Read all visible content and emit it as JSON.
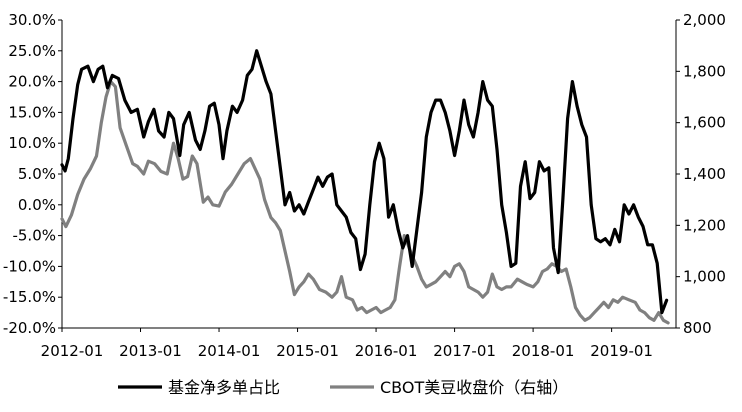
{
  "chart_data": {
    "type": "line",
    "x_ticks": [
      "2012-01",
      "2013-01",
      "2014-01",
      "2015-01",
      "2016-01",
      "2017-01",
      "2018-01",
      "2019-01"
    ],
    "left_axis": {
      "ticks": [
        "-20.0%",
        "-15.0%",
        "-10.0%",
        "-5.0%",
        "0.0%",
        "5.0%",
        "10.0%",
        "15.0%",
        "20.0%",
        "25.0%",
        "30.0%"
      ],
      "range": [
        -20,
        30
      ],
      "unit": "%"
    },
    "right_axis": {
      "ticks": [
        "800",
        "1,000",
        "1,200",
        "1,400",
        "1,600",
        "1,800",
        "2,000"
      ],
      "range": [
        800,
        2000
      ]
    },
    "grid": false,
    "legend_position": "bottom",
    "series": [
      {
        "name": "基金净多单占比",
        "axis": "left",
        "color": "#000000",
        "points": [
          [
            2012.0,
            6.5
          ],
          [
            2012.04,
            5.5
          ],
          [
            2012.08,
            7.5
          ],
          [
            2012.14,
            14.0
          ],
          [
            2012.2,
            19.5
          ],
          [
            2012.25,
            22.0
          ],
          [
            2012.33,
            22.5
          ],
          [
            2012.4,
            20.0
          ],
          [
            2012.46,
            22.0
          ],
          [
            2012.52,
            22.5
          ],
          [
            2012.58,
            19.0
          ],
          [
            2012.64,
            21.0
          ],
          [
            2012.72,
            20.5
          ],
          [
            2012.8,
            17.0
          ],
          [
            2012.88,
            15.0
          ],
          [
            2012.96,
            15.5
          ],
          [
            2013.04,
            11.0
          ],
          [
            2013.1,
            13.5
          ],
          [
            2013.17,
            15.5
          ],
          [
            2013.23,
            12.0
          ],
          [
            2013.3,
            11.0
          ],
          [
            2013.36,
            15.0
          ],
          [
            2013.42,
            14.0
          ],
          [
            2013.5,
            8.0
          ],
          [
            2013.55,
            13.0
          ],
          [
            2013.62,
            15.0
          ],
          [
            2013.7,
            10.5
          ],
          [
            2013.76,
            9.0
          ],
          [
            2013.82,
            12.0
          ],
          [
            2013.88,
            16.0
          ],
          [
            2013.94,
            16.5
          ],
          [
            2014.0,
            13.0
          ],
          [
            2014.05,
            7.5
          ],
          [
            2014.1,
            12.0
          ],
          [
            2014.17,
            16.0
          ],
          [
            2014.23,
            15.0
          ],
          [
            2014.3,
            17.0
          ],
          [
            2014.36,
            21.0
          ],
          [
            2014.42,
            22.0
          ],
          [
            2014.48,
            25.0
          ],
          [
            2014.54,
            22.5
          ],
          [
            2014.6,
            20.0
          ],
          [
            2014.66,
            18.0
          ],
          [
            2014.72,
            12.0
          ],
          [
            2014.78,
            6.0
          ],
          [
            2014.84,
            0.0
          ],
          [
            2014.9,
            2.0
          ],
          [
            2014.96,
            -1.0
          ],
          [
            2015.02,
            0.0
          ],
          [
            2015.08,
            -1.5
          ],
          [
            2015.14,
            0.5
          ],
          [
            2015.2,
            2.5
          ],
          [
            2015.26,
            4.5
          ],
          [
            2015.32,
            3.0
          ],
          [
            2015.38,
            4.5
          ],
          [
            2015.44,
            5.0
          ],
          [
            2015.5,
            0.0
          ],
          [
            2015.56,
            -1.0
          ],
          [
            2015.62,
            -2.0
          ],
          [
            2015.68,
            -4.5
          ],
          [
            2015.74,
            -5.5
          ],
          [
            2015.8,
            -10.5
          ],
          [
            2015.86,
            -8.0
          ],
          [
            2015.92,
            0.0
          ],
          [
            2015.98,
            7.0
          ],
          [
            2016.04,
            10.0
          ],
          [
            2016.1,
            7.5
          ],
          [
            2016.16,
            -2.0
          ],
          [
            2016.22,
            0.0
          ],
          [
            2016.28,
            -4.0
          ],
          [
            2016.34,
            -7.0
          ],
          [
            2016.4,
            -5.0
          ],
          [
            2016.46,
            -10.0
          ],
          [
            2016.52,
            -4.0
          ],
          [
            2016.58,
            2.0
          ],
          [
            2016.64,
            11.0
          ],
          [
            2016.7,
            15.0
          ],
          [
            2016.76,
            17.0
          ],
          [
            2016.82,
            17.0
          ],
          [
            2016.88,
            15.0
          ],
          [
            2016.94,
            12.0
          ],
          [
            2017.0,
            8.0
          ],
          [
            2017.06,
            12.0
          ],
          [
            2017.12,
            17.0
          ],
          [
            2017.18,
            13.0
          ],
          [
            2017.24,
            11.0
          ],
          [
            2017.3,
            15.0
          ],
          [
            2017.36,
            20.0
          ],
          [
            2017.42,
            17.0
          ],
          [
            2017.48,
            16.0
          ],
          [
            2017.54,
            9.0
          ],
          [
            2017.6,
            0.0
          ],
          [
            2017.66,
            -4.5
          ],
          [
            2017.72,
            -10.0
          ],
          [
            2017.78,
            -9.5
          ],
          [
            2017.84,
            3.0
          ],
          [
            2017.9,
            7.0
          ],
          [
            2017.96,
            1.0
          ],
          [
            2018.02,
            2.0
          ],
          [
            2018.08,
            7.0
          ],
          [
            2018.14,
            5.5
          ],
          [
            2018.2,
            6.0
          ],
          [
            2018.26,
            -7.0
          ],
          [
            2018.32,
            -11.0
          ],
          [
            2018.38,
            1.0
          ],
          [
            2018.44,
            14.0
          ],
          [
            2018.5,
            20.0
          ],
          [
            2018.56,
            16.0
          ],
          [
            2018.62,
            13.0
          ],
          [
            2018.68,
            11.0
          ],
          [
            2018.74,
            0.0
          ],
          [
            2018.8,
            -5.5
          ],
          [
            2018.86,
            -6.0
          ],
          [
            2018.92,
            -5.5
          ],
          [
            2018.98,
            -6.5
          ],
          [
            2019.04,
            -4.0
          ],
          [
            2019.1,
            -6.0
          ],
          [
            2019.16,
            0.0
          ],
          [
            2019.22,
            -1.5
          ],
          [
            2019.28,
            0.0
          ],
          [
            2019.34,
            -2.0
          ],
          [
            2019.4,
            -3.5
          ],
          [
            2019.46,
            -6.5
          ],
          [
            2019.52,
            -6.5
          ],
          [
            2019.58,
            -9.5
          ],
          [
            2019.64,
            -17.5
          ],
          [
            2019.7,
            -15.5
          ]
        ]
      },
      {
        "name": "CBOT美豆收盘价（右轴）",
        "axis": "right",
        "color": "#808080",
        "points": [
          [
            2012.0,
            1225
          ],
          [
            2012.05,
            1195
          ],
          [
            2012.12,
            1240
          ],
          [
            2012.2,
            1320
          ],
          [
            2012.28,
            1380
          ],
          [
            2012.36,
            1420
          ],
          [
            2012.44,
            1470
          ],
          [
            2012.5,
            1600
          ],
          [
            2012.56,
            1700
          ],
          [
            2012.62,
            1760
          ],
          [
            2012.68,
            1740
          ],
          [
            2012.74,
            1580
          ],
          [
            2012.82,
            1510
          ],
          [
            2012.9,
            1440
          ],
          [
            2012.96,
            1430
          ],
          [
            2013.04,
            1400
          ],
          [
            2013.1,
            1450
          ],
          [
            2013.18,
            1440
          ],
          [
            2013.26,
            1410
          ],
          [
            2013.34,
            1400
          ],
          [
            2013.42,
            1520
          ],
          [
            2013.48,
            1460
          ],
          [
            2013.54,
            1380
          ],
          [
            2013.6,
            1390
          ],
          [
            2013.66,
            1470
          ],
          [
            2013.72,
            1440
          ],
          [
            2013.8,
            1290
          ],
          [
            2013.86,
            1310
          ],
          [
            2013.92,
            1280
          ],
          [
            2014.0,
            1275
          ],
          [
            2014.08,
            1330
          ],
          [
            2014.16,
            1360
          ],
          [
            2014.24,
            1400
          ],
          [
            2014.32,
            1440
          ],
          [
            2014.4,
            1460
          ],
          [
            2014.46,
            1420
          ],
          [
            2014.52,
            1380
          ],
          [
            2014.58,
            1300
          ],
          [
            2014.66,
            1230
          ],
          [
            2014.72,
            1210
          ],
          [
            2014.78,
            1180
          ],
          [
            2014.84,
            1100
          ],
          [
            2014.9,
            1020
          ],
          [
            2014.96,
            930
          ],
          [
            2015.02,
            960
          ],
          [
            2015.08,
            980
          ],
          [
            2015.14,
            1010
          ],
          [
            2015.2,
            990
          ],
          [
            2015.28,
            950
          ],
          [
            2015.36,
            940
          ],
          [
            2015.44,
            920
          ],
          [
            2015.5,
            940
          ],
          [
            2015.56,
            1000
          ],
          [
            2015.62,
            920
          ],
          [
            2015.7,
            910
          ],
          [
            2015.76,
            870
          ],
          [
            2015.82,
            880
          ],
          [
            2015.88,
            860
          ],
          [
            2015.94,
            870
          ],
          [
            2016.0,
            880
          ],
          [
            2016.06,
            860
          ],
          [
            2016.12,
            870
          ],
          [
            2016.18,
            880
          ],
          [
            2016.24,
            910
          ],
          [
            2016.3,
            1040
          ],
          [
            2016.36,
            1160
          ],
          [
            2016.4,
            1130
          ],
          [
            2016.46,
            1080
          ],
          [
            2016.52,
            1040
          ],
          [
            2016.58,
            990
          ],
          [
            2016.64,
            960
          ],
          [
            2016.7,
            970
          ],
          [
            2016.76,
            980
          ],
          [
            2016.82,
            1000
          ],
          [
            2016.88,
            1020
          ],
          [
            2016.94,
            1000
          ],
          [
            2017.0,
            1040
          ],
          [
            2017.06,
            1050
          ],
          [
            2017.12,
            1020
          ],
          [
            2017.18,
            960
          ],
          [
            2017.24,
            950
          ],
          [
            2017.3,
            940
          ],
          [
            2017.36,
            920
          ],
          [
            2017.42,
            940
          ],
          [
            2017.48,
            1010
          ],
          [
            2017.54,
            960
          ],
          [
            2017.6,
            950
          ],
          [
            2017.66,
            960
          ],
          [
            2017.72,
            960
          ],
          [
            2017.8,
            990
          ],
          [
            2017.86,
            980
          ],
          [
            2017.92,
            970
          ],
          [
            2018.0,
            960
          ],
          [
            2018.06,
            980
          ],
          [
            2018.12,
            1020
          ],
          [
            2018.18,
            1030
          ],
          [
            2018.24,
            1050
          ],
          [
            2018.3,
            1040
          ],
          [
            2018.36,
            1020
          ],
          [
            2018.42,
            1030
          ],
          [
            2018.48,
            960
          ],
          [
            2018.54,
            880
          ],
          [
            2018.6,
            850
          ],
          [
            2018.66,
            830
          ],
          [
            2018.72,
            840
          ],
          [
            2018.78,
            860
          ],
          [
            2018.84,
            880
          ],
          [
            2018.9,
            900
          ],
          [
            2018.96,
            880
          ],
          [
            2019.02,
            910
          ],
          [
            2019.08,
            900
          ],
          [
            2019.14,
            920
          ],
          [
            2019.22,
            910
          ],
          [
            2019.3,
            900
          ],
          [
            2019.36,
            870
          ],
          [
            2019.42,
            860
          ],
          [
            2019.48,
            840
          ],
          [
            2019.54,
            830
          ],
          [
            2019.6,
            860
          ],
          [
            2019.66,
            830
          ],
          [
            2019.72,
            820
          ]
        ]
      }
    ]
  }
}
